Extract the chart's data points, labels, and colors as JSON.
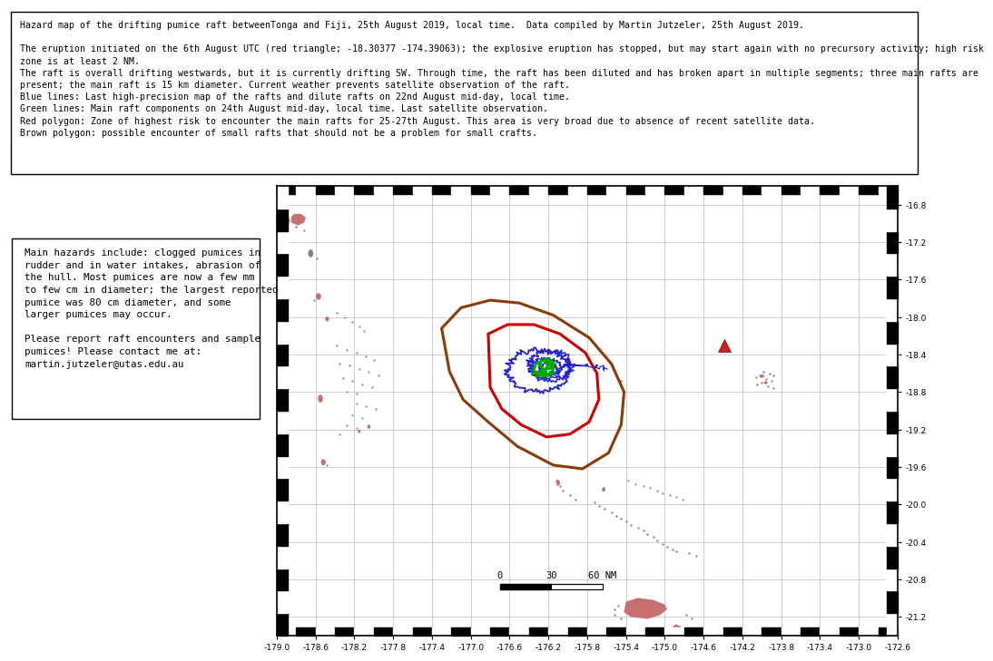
{
  "title_text": "Hazard map of the drifting pumice raft betweenTonga and Fiji, 25th August 2019, local time.  Data compiled by Martin Jutzeler, 25th August 2019.",
  "desc_line1": "The eruption initiated on the 6th August UTC (red triangle; -18.30377 -174.39063); the explosive eruption has stopped, but may start again with no precursory activity; high risk\nzone is at least 2 NM.",
  "desc_line2": "The raft is overall drifting westwards, but it is currently drifting SW. Through time, the raft has been diluted and has broken apart in multiple segments; three main rafts are\npresent; the main raft is 15 km diameter. Current weather prevents satellite observation of the raft.",
  "desc_line3": "Blue lines: Last high-precision map of the rafts and dilute rafts on 22nd August mid-day, local time.",
  "desc_line4": "Green lines: Main raft components on 24th August mid-day, local time. Last satellite observation.",
  "desc_line5": "Red polygon: Zone of highest risk to encounter the main rafts for 25-27th August. This area is very broad due to absence of recent satellite data.",
  "desc_line6": "Brown polygon: possible encounter of small rafts that should not be a problem for small crafts.",
  "side_text": "Main hazards include: clogged pumices in\nrudder and in water intakes, abrasion of\nthe hull. Most pumices are now a few mm\nto few cm in diameter; the largest reported\npumice was 80 cm diameter, and some\nlarger pumices may occur.\n\nPlease report raft encounters and sample\npumices! Please contact me at:\nmartin.jutzeler@utas.edu.au",
  "map_xlim": [
    -179.0,
    -172.6
  ],
  "map_ylim": [
    -21.4,
    -16.6
  ],
  "xticks": [
    -179.0,
    -178.6,
    -178.2,
    -177.8,
    -177.4,
    -177.0,
    -176.6,
    -176.2,
    -175.8,
    -175.4,
    -175.0,
    -174.6,
    -174.2,
    -173.8,
    -173.4,
    -173.0,
    -172.6
  ],
  "yticks": [
    -16.8,
    -17.2,
    -17.6,
    -18.0,
    -18.4,
    -18.8,
    -19.2,
    -19.6,
    -20.0,
    -20.4,
    -20.8,
    -21.2
  ],
  "eruption_lon": -174.39063,
  "eruption_lat": -18.30377,
  "island_color": "#c87070",
  "island_color_dark": "#808080",
  "brown_color": "#8B3A0A",
  "red_color": "#cc0000",
  "blue_color": "#2222cc",
  "green_color": "#00aa00",
  "scale_x0": -176.7,
  "scale_y0": -20.85,
  "scale_nm60_deg": 1.06
}
